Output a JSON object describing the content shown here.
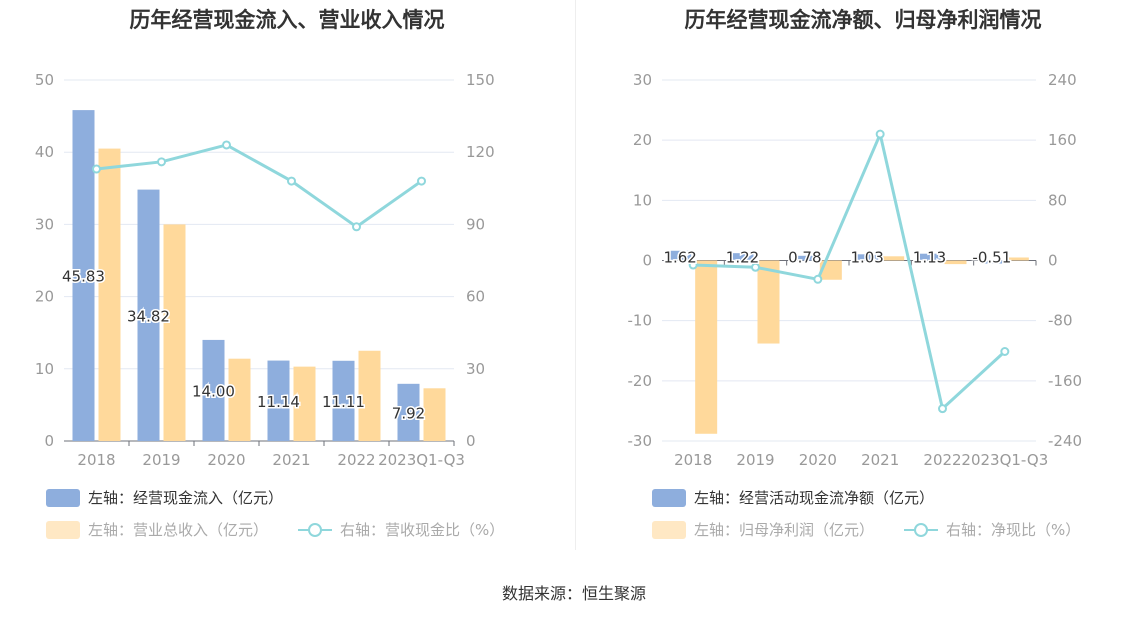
{
  "chart_data": [
    {
      "type": "bar",
      "title": "历年经营现金流入、营业收入情况",
      "categories": [
        "2018",
        "2019",
        "2020",
        "2021",
        "2022",
        "2023Q1-Q3"
      ],
      "left_axis": {
        "ylim": [
          0,
          50
        ],
        "ticks": [
          "0",
          "10",
          "20",
          "30",
          "40",
          "50"
        ]
      },
      "right_axis": {
        "ylim": [
          0,
          150
        ],
        "ticks": [
          "0",
          "30",
          "60",
          "90",
          "120",
          "150"
        ]
      },
      "series": [
        {
          "name": "左轴：经营现金流入（亿元）",
          "type": "bar",
          "axis": "left",
          "color": "#8eaedd",
          "values": [
            45.83,
            34.82,
            14.0,
            11.14,
            11.11,
            7.92
          ],
          "labels": [
            "45.83",
            "34.82",
            "14.00",
            "11.14",
            "11.11",
            "7.92"
          ]
        },
        {
          "name": "左轴：营业总收入（亿元）",
          "type": "bar",
          "axis": "left",
          "color": "#ffd99b",
          "values": [
            40.5,
            30.0,
            11.4,
            10.3,
            12.5,
            7.3
          ]
        },
        {
          "name": "右轴：营收现金比（%）",
          "type": "line",
          "axis": "right",
          "color": "#8fd7dc",
          "values": [
            113,
            116,
            123,
            108,
            89,
            108
          ]
        }
      ],
      "legend": "bottom-left",
      "grid": true
    },
    {
      "type": "bar",
      "title": "历年经营现金流净额、归母净利润情况",
      "categories": [
        "2018",
        "2019",
        "2020",
        "2021",
        "2022",
        "2023Q1-Q3"
      ],
      "left_axis": {
        "ylim": [
          -30,
          30
        ],
        "ticks": [
          "-30",
          "-20",
          "-10",
          "0",
          "10",
          "20",
          "30"
        ]
      },
      "right_axis": {
        "ylim": [
          -240,
          240
        ],
        "ticks": [
          "-240",
          "-160",
          "-80",
          "0",
          "80",
          "160",
          "240"
        ]
      },
      "series": [
        {
          "name": "左轴：经营活动现金流净额（亿元）",
          "type": "bar",
          "axis": "left",
          "color": "#8eaedd",
          "values": [
            1.62,
            1.22,
            0.78,
            1.03,
            1.13,
            -0.51
          ],
          "labels": [
            "1.62",
            "1.22",
            "0.78",
            "1.03",
            "1.13",
            "-0.51"
          ]
        },
        {
          "name": "左轴：归母净利润（亿元）",
          "type": "bar",
          "axis": "left",
          "color": "#ffd99b",
          "values": [
            -28.8,
            -13.8,
            -3.2,
            0.7,
            -0.6,
            0.5
          ]
        },
        {
          "name": "右轴：净现比（%）",
          "type": "line",
          "axis": "right",
          "color": "#8fd7dc",
          "values": [
            -6,
            -9,
            -25,
            168,
            -197,
            -121
          ]
        }
      ],
      "legend": "bottom-left",
      "grid": true
    }
  ],
  "source_text": "数据来源：恒生聚源"
}
